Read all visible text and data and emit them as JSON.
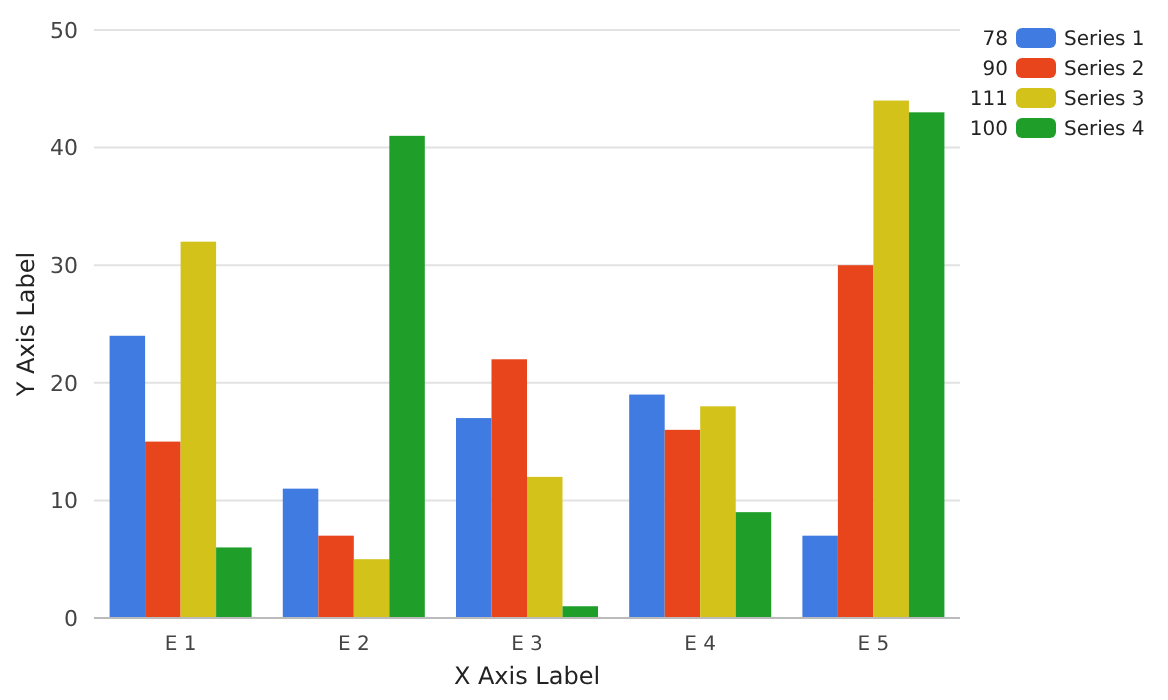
{
  "chart_data": {
    "type": "bar",
    "xlabel": "X Axis Label",
    "ylabel": "Y Axis Label",
    "categories": [
      "E 1",
      "E 2",
      "E 3",
      "E 4",
      "E 5"
    ],
    "series": [
      {
        "name": "Series 1",
        "color": "#3f7be0",
        "values": [
          24,
          11,
          17,
          19,
          7
        ]
      },
      {
        "name": "Series 2",
        "color": "#e8451c",
        "values": [
          15,
          7,
          22,
          16,
          30
        ]
      },
      {
        "name": "Series 3",
        "color": "#d2c21a",
        "values": [
          32,
          5,
          12,
          18,
          44
        ]
      },
      {
        "name": "Series 4",
        "color": "#1f9f2a",
        "values": [
          6,
          41,
          1,
          9,
          43
        ]
      }
    ],
    "annotations": [
      "78",
      "90",
      "111",
      "100"
    ],
    "ylim": [
      0,
      50
    ],
    "yticks": [
      0,
      10,
      20,
      30,
      40,
      50
    ],
    "grid": "y",
    "legend": "top right"
  }
}
